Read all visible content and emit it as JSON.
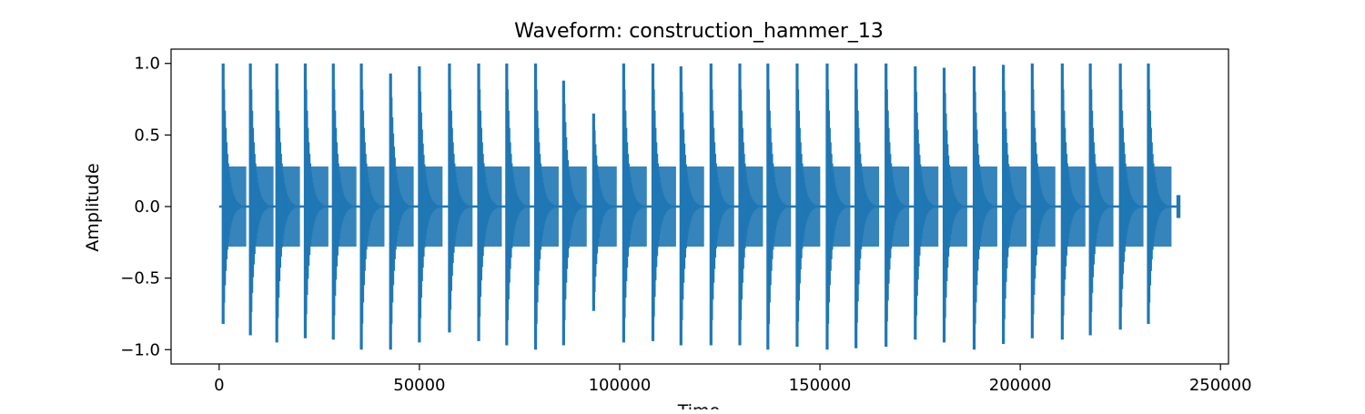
{
  "chart_data": {
    "type": "line",
    "title": "Waveform: construction_hammer_13",
    "xlabel": "Time",
    "ylabel": "Amplitude",
    "xlim": [
      -12000,
      252000
    ],
    "ylim": [
      -1.1,
      1.1
    ],
    "x_ticks": [
      0,
      50000,
      100000,
      150000,
      200000,
      250000
    ],
    "x_tick_labels": [
      "0",
      "50000",
      "100000",
      "150000",
      "200000",
      "250000"
    ],
    "y_ticks": [
      -1.0,
      -0.5,
      0.0,
      0.5,
      1.0
    ],
    "y_tick_labels": [
      "−1.0",
      "−0.5",
      "0.0",
      "0.5",
      "1.0"
    ],
    "grid": false,
    "series": [
      {
        "color": "#1f77b4",
        "x_range": [
          0,
          240000
        ],
        "impulses": [
          {
            "x": 1000,
            "max": 1.0,
            "min": -0.82
          },
          {
            "x": 7800,
            "max": 1.0,
            "min": -0.9
          },
          {
            "x": 14400,
            "max": 1.0,
            "min": -0.95
          },
          {
            "x": 21500,
            "max": 1.0,
            "min": -0.92
          },
          {
            "x": 28500,
            "max": 1.0,
            "min": -0.93
          },
          {
            "x": 35500,
            "max": 1.0,
            "min": -1.0
          },
          {
            "x": 42800,
            "max": 0.93,
            "min": -1.0
          },
          {
            "x": 50000,
            "max": 0.98,
            "min": -0.95
          },
          {
            "x": 57500,
            "max": 1.0,
            "min": -0.88
          },
          {
            "x": 64800,
            "max": 1.0,
            "min": -0.94
          },
          {
            "x": 71800,
            "max": 1.0,
            "min": -0.97
          },
          {
            "x": 79000,
            "max": 1.0,
            "min": -1.0
          },
          {
            "x": 86000,
            "max": 0.88,
            "min": -0.97
          },
          {
            "x": 93500,
            "max": 0.65,
            "min": -0.73
          },
          {
            "x": 101000,
            "max": 1.0,
            "min": -0.95
          },
          {
            "x": 108300,
            "max": 1.0,
            "min": -0.94
          },
          {
            "x": 115300,
            "max": 0.98,
            "min": -0.97
          },
          {
            "x": 122800,
            "max": 1.0,
            "min": -0.97
          },
          {
            "x": 130000,
            "max": 1.0,
            "min": -0.97
          },
          {
            "x": 137000,
            "max": 1.0,
            "min": -1.0
          },
          {
            "x": 144300,
            "max": 1.0,
            "min": -0.98
          },
          {
            "x": 151800,
            "max": 1.0,
            "min": -1.0
          },
          {
            "x": 159000,
            "max": 1.0,
            "min": -0.99
          },
          {
            "x": 166500,
            "max": 1.0,
            "min": -0.98
          },
          {
            "x": 173800,
            "max": 0.98,
            "min": -0.93
          },
          {
            "x": 181000,
            "max": 0.97,
            "min": -0.95
          },
          {
            "x": 188500,
            "max": 0.98,
            "min": -1.0
          },
          {
            "x": 195800,
            "max": 0.99,
            "min": -0.96
          },
          {
            "x": 203000,
            "max": 1.0,
            "min": -0.92
          },
          {
            "x": 210500,
            "max": 1.0,
            "min": -0.93
          },
          {
            "x": 217500,
            "max": 1.0,
            "min": -0.9
          },
          {
            "x": 225000,
            "max": 1.0,
            "min": -0.86
          },
          {
            "x": 232000,
            "max": 1.0,
            "min": -0.82
          }
        ],
        "end_tail": {
          "x": 239000,
          "max": 0.08,
          "min": -0.08
        }
      }
    ]
  }
}
